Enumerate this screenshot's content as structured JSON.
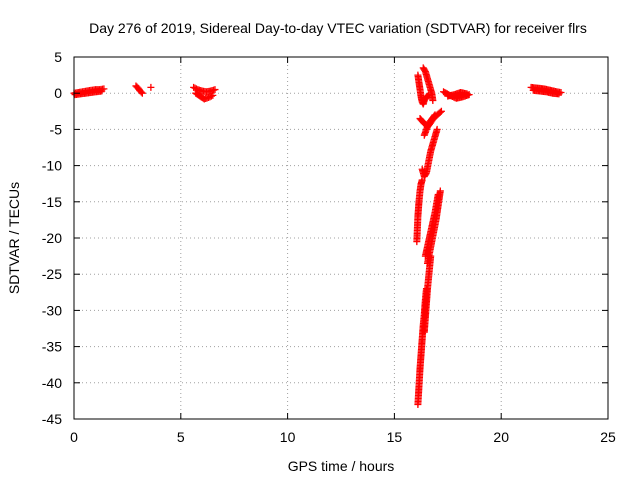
{
  "chart_data": {
    "type": "scatter",
    "title": "Day 276 of 2019, Sidereal Day-to-day VTEC variation (SDTVAR) for receiver flrs",
    "xlabel": "GPS time / hours",
    "ylabel": "SDTVAR / TECUs",
    "xlim": [
      0,
      25
    ],
    "ylim": [
      -45,
      5
    ],
    "x_ticks": [
      "0",
      "5",
      "10",
      "15",
      "20",
      "25"
    ],
    "y_ticks": [
      "5",
      "0",
      "-5",
      "-10",
      "-15",
      "-20",
      "-25",
      "-30",
      "-35",
      "-40",
      "-45"
    ],
    "grid": true,
    "marker": "+",
    "color": "#ff0000",
    "segments": [
      {
        "x": [
          0.0,
          0.2,
          0.4,
          0.6,
          0.8,
          1.0,
          1.2,
          1.4
        ],
        "y": [
          0.0,
          0.1,
          0.2,
          0.3,
          0.4,
          0.5,
          0.5,
          0.6
        ]
      },
      {
        "x": [
          0.05,
          0.3,
          0.55,
          0.8,
          1.05,
          1.3
        ],
        "y": [
          -0.2,
          -0.1,
          0.0,
          0.1,
          0.2,
          0.3
        ]
      },
      {
        "x": [
          2.9,
          3.0,
          3.1,
          3.2
        ],
        "y": [
          1.0,
          0.7,
          0.3,
          0.0
        ]
      },
      {
        "x": [
          3.6
        ],
        "y": [
          0.8
        ]
      },
      {
        "x": [
          5.6,
          5.8,
          6.0,
          6.2,
          6.4,
          6.6
        ],
        "y": [
          0.8,
          0.5,
          0.3,
          0.2,
          0.3,
          0.5
        ]
      },
      {
        "x": [
          5.7,
          5.9,
          6.1,
          6.3,
          6.5
        ],
        "y": [
          0.0,
          -0.4,
          -0.8,
          -0.6,
          -0.3
        ]
      },
      {
        "x": [
          16.1,
          16.15,
          16.2,
          16.25,
          16.3,
          16.35,
          16.4,
          16.5,
          16.6
        ],
        "y": [
          2.5,
          1.5,
          0.5,
          -0.5,
          -1.2,
          -1.5,
          -1.0,
          -0.5,
          -0.3
        ]
      },
      {
        "x": [
          16.35,
          16.45,
          16.55,
          16.65,
          16.75,
          16.8
        ],
        "y": [
          3.5,
          3.0,
          2.0,
          1.0,
          0.0,
          -1.0
        ]
      },
      {
        "x": [
          17.3,
          17.6,
          17.9,
          18.2,
          18.5
        ],
        "y": [
          0.2,
          -0.3,
          -0.7,
          -0.5,
          -0.2
        ]
      },
      {
        "x": [
          17.5,
          17.8,
          18.1,
          18.4
        ],
        "y": [
          -0.4,
          -0.2,
          0.1,
          -0.1
        ]
      },
      {
        "x": [
          16.2,
          16.4,
          16.6,
          16.8,
          17.0,
          17.2
        ],
        "y": [
          -3.5,
          -4.2,
          -4.5,
          -3.6,
          -3.0,
          -2.5
        ]
      },
      {
        "x": [
          16.4,
          16.5,
          16.6,
          16.7,
          16.8,
          16.9
        ],
        "y": [
          -5.8,
          -5.0,
          -4.3,
          -3.8,
          -3.4,
          -3.0
        ]
      },
      {
        "x": [
          16.3,
          16.4,
          16.5,
          16.6,
          16.7,
          16.8,
          16.9,
          17.0
        ],
        "y": [
          -10.5,
          -11.5,
          -11.0,
          -9.5,
          -8.0,
          -7.0,
          -6.0,
          -5.0
        ]
      },
      {
        "x": [
          16.05,
          16.1,
          16.15,
          16.2,
          16.25,
          16.3
        ],
        "y": [
          -20.5,
          -17.0,
          -15.0,
          -13.5,
          -12.5,
          -12.0
        ]
      },
      {
        "x": [
          16.55,
          16.65,
          16.75,
          16.85,
          16.95,
          17.05,
          17.15
        ],
        "y": [
          -23.5,
          -22.0,
          -20.5,
          -19.0,
          -17.5,
          -15.5,
          -13.5
        ]
      },
      {
        "x": [
          16.45,
          16.6,
          16.75,
          16.9,
          17.05
        ],
        "y": [
          -22.5,
          -20.5,
          -18.5,
          -16.5,
          -14.0
        ]
      },
      {
        "x": [
          16.4,
          16.45,
          16.5,
          16.55,
          16.6,
          16.65,
          16.7
        ],
        "y": [
          -33.0,
          -31.0,
          -29.0,
          -27.0,
          -25.5,
          -24.0,
          -22.5
        ]
      },
      {
        "x": [
          16.1,
          16.15,
          16.2,
          16.25,
          16.3,
          16.35,
          16.4,
          16.45,
          16.5
        ],
        "y": [
          -43.0,
          -40.5,
          -38.0,
          -36.0,
          -34.0,
          -32.0,
          -30.5,
          -28.5,
          -27.0
        ]
      },
      {
        "x": [
          21.4,
          21.7,
          22.0,
          22.3,
          22.6,
          22.8
        ],
        "y": [
          0.8,
          0.7,
          0.6,
          0.4,
          0.2,
          0.1
        ]
      },
      {
        "x": [
          21.5,
          21.8,
          22.1,
          22.4,
          22.7
        ],
        "y": [
          0.4,
          0.3,
          0.2,
          0.0,
          -0.1
        ]
      }
    ]
  }
}
